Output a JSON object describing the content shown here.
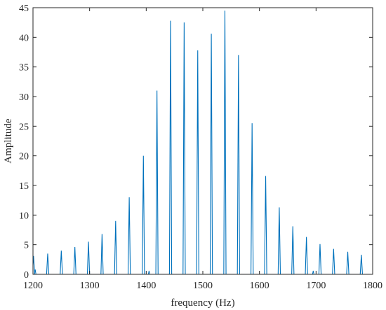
{
  "chart_data": {
    "type": "line",
    "title": "",
    "xlabel": "frequency (Hz)",
    "ylabel": "Amplitude",
    "xlim": [
      1200,
      1800
    ],
    "ylim": [
      0,
      45
    ],
    "xticks": [
      1200,
      1300,
      1400,
      1500,
      1600,
      1700,
      1800
    ],
    "yticks": [
      0,
      5,
      10,
      15,
      20,
      25,
      30,
      35,
      40,
      45
    ],
    "grid": false,
    "legend": "none",
    "series": [
      {
        "color": "#0072BD",
        "peaks": [
          {
            "x": 1201,
            "y": 3.1
          },
          {
            "x": 1226,
            "y": 3.5
          },
          {
            "x": 1250,
            "y": 4.0
          },
          {
            "x": 1274,
            "y": 4.6
          },
          {
            "x": 1298,
            "y": 5.5
          },
          {
            "x": 1322,
            "y": 6.8
          },
          {
            "x": 1346,
            "y": 9.0
          },
          {
            "x": 1370,
            "y": 13.0
          },
          {
            "x": 1395,
            "y": 20.0
          },
          {
            "x": 1419,
            "y": 31.0
          },
          {
            "x": 1443,
            "y": 42.8
          },
          {
            "x": 1467,
            "y": 42.5
          },
          {
            "x": 1491,
            "y": 37.8
          },
          {
            "x": 1515,
            "y": 40.6
          },
          {
            "x": 1539,
            "y": 44.5
          },
          {
            "x": 1563,
            "y": 37.0
          },
          {
            "x": 1587,
            "y": 25.5
          },
          {
            "x": 1611,
            "y": 16.6
          },
          {
            "x": 1635,
            "y": 11.3
          },
          {
            "x": 1659,
            "y": 8.1
          },
          {
            "x": 1683,
            "y": 6.3
          },
          {
            "x": 1707,
            "y": 5.1
          },
          {
            "x": 1731,
            "y": 4.3
          },
          {
            "x": 1756,
            "y": 3.8
          },
          {
            "x": 1780,
            "y": 3.3
          }
        ],
        "small_peaks": [
          {
            "x": 1204,
            "y": 0.8
          },
          {
            "x": 1405,
            "y": 0.6
          },
          {
            "x": 1695,
            "y": 0.6
          }
        ]
      }
    ]
  }
}
